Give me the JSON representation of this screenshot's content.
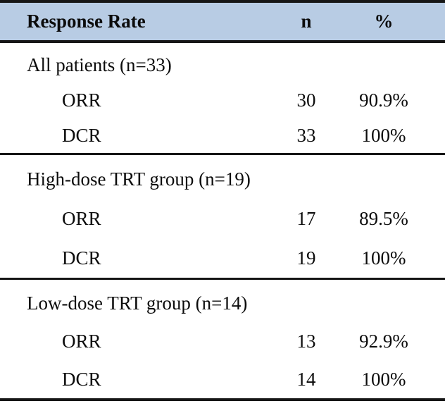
{
  "table": {
    "columns": {
      "label": "Response Rate",
      "n": "n",
      "pct": "%"
    },
    "sections": [
      {
        "header": "All patients (n=33)",
        "rows": [
          {
            "label": "ORR",
            "n": "30",
            "pct": "90.9%"
          },
          {
            "label": "DCR",
            "n": "33",
            "pct": "100%"
          }
        ]
      },
      {
        "header": "High-dose TRT group (n=19)",
        "rows": [
          {
            "label": "ORR",
            "n": "17",
            "pct": "89.5%"
          },
          {
            "label": "DCR",
            "n": "19",
            "pct": "100%"
          }
        ]
      },
      {
        "header": "Low-dose TRT group (n=14)",
        "rows": [
          {
            "label": "ORR",
            "n": "13",
            "pct": "92.9%"
          },
          {
            "label": "DCR",
            "n": "14",
            "pct": "100%"
          }
        ]
      }
    ],
    "colors": {
      "header_bg": "#b8cce4",
      "border": "#161616",
      "text": "#0c0c0c"
    }
  }
}
